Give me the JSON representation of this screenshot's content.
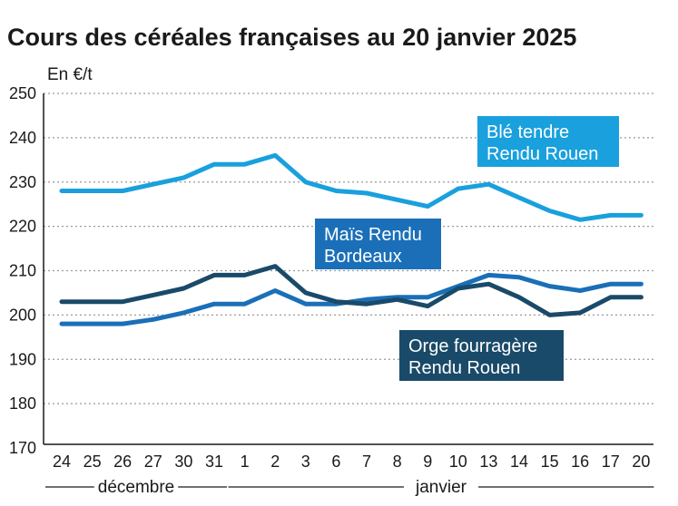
{
  "chart_data": {
    "type": "line",
    "title": "Cours des céréales françaises au 20 janvier 2025",
    "ylabel": "En €/t",
    "xlabel": "",
    "ylim": [
      170,
      250
    ],
    "yticks": [
      170,
      180,
      190,
      200,
      210,
      220,
      230,
      240,
      250
    ],
    "grid": true,
    "categories": [
      "24",
      "25",
      "26",
      "27",
      "30",
      "31",
      "1",
      "2",
      "3",
      "6",
      "7",
      "8",
      "9",
      "10",
      "13",
      "14",
      "15",
      "16",
      "17",
      "20"
    ],
    "month_groups": [
      {
        "label": "décembre",
        "start": 0,
        "end": 5
      },
      {
        "label": "janvier",
        "start": 6,
        "end": 19
      }
    ],
    "series": [
      {
        "name": "Blé tendre Rendu Rouen",
        "label_lines": [
          "Blé tendre",
          "Rendu Rouen"
        ],
        "color": "#19a0dd",
        "values": [
          228,
          228,
          228,
          229.5,
          231,
          234,
          234,
          236,
          230,
          228,
          227.5,
          226,
          224.5,
          228.5,
          229.5,
          226.5,
          223.5,
          221.5,
          222.5,
          222.5
        ]
      },
      {
        "name": "Maïs Rendu Bordeaux",
        "label_lines": [
          "Maïs Rendu",
          "Bordeaux"
        ],
        "color": "#1a6fb8",
        "values": [
          198,
          198,
          198,
          199,
          200.5,
          202.5,
          202.5,
          205.5,
          202.5,
          202.5,
          203.5,
          204,
          204,
          206.5,
          209,
          208.5,
          206.5,
          205.5,
          207,
          207
        ]
      },
      {
        "name": "Orge fourragère Rendu Rouen",
        "label_lines": [
          "Orge fourragère",
          "Rendu Rouen"
        ],
        "color": "#1a4a69",
        "values": [
          203,
          203,
          203,
          204.5,
          206,
          209,
          209,
          211,
          205,
          203,
          202.5,
          203.5,
          202,
          206,
          207,
          204,
          200,
          200.5,
          204,
          204
        ]
      }
    ]
  }
}
